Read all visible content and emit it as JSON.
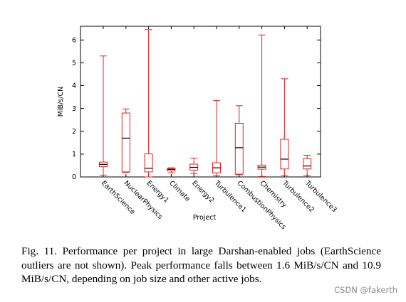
{
  "chart_data": {
    "type": "boxplot",
    "xlabel": "Project",
    "ylabel": "MiB/s/CN",
    "ylim": [
      0,
      6.6
    ],
    "yticks": [
      0,
      1,
      2,
      3,
      4,
      5,
      6
    ],
    "box_color": "#e8201e",
    "median_color": "#000000",
    "grid": false,
    "categories": [
      "EarthScience",
      "NuclearPhysics",
      "Energy1",
      "Climate",
      "Energy2",
      "Turbulence1",
      "CombustionPhysics",
      "Chemistry",
      "Turbulence2",
      "Turbulence3"
    ],
    "boxes": [
      {
        "min": 0.08,
        "q1": 0.45,
        "median": 0.55,
        "q3": 0.65,
        "max": 5.3
      },
      {
        "min": 0.2,
        "q1": 0.22,
        "median": 1.7,
        "q3": 2.8,
        "max": 2.98
      },
      {
        "min": 0.0,
        "q1": 0.22,
        "median": 0.38,
        "q3": 1.01,
        "max": 6.45
      },
      {
        "min": 0.18,
        "q1": 0.26,
        "median": 0.33,
        "q3": 0.37,
        "max": 0.4
      },
      {
        "min": 0.15,
        "q1": 0.3,
        "median": 0.42,
        "q3": 0.56,
        "max": 0.82
      },
      {
        "min": 0.05,
        "q1": 0.18,
        "median": 0.4,
        "q3": 0.62,
        "max": 3.35
      },
      {
        "min": 0.1,
        "q1": 0.12,
        "median": 1.28,
        "q3": 2.35,
        "max": 3.12
      },
      {
        "min": 0.02,
        "q1": 0.34,
        "median": 0.43,
        "q3": 0.52,
        "max": 6.22
      },
      {
        "min": 0.05,
        "q1": 0.35,
        "median": 0.78,
        "q3": 1.65,
        "max": 4.3
      },
      {
        "min": 0.05,
        "q1": 0.35,
        "median": 0.48,
        "q3": 0.8,
        "max": 0.95
      }
    ]
  },
  "caption": "Fig. 11.   Performance per project in large Darshan-enabled jobs (EarthScience outliers are not shown). Peak performance falls between 1.6 MiB/s/CN and 10.9 MiB/s/CN, depending on job size and other active jobs.",
  "watermark": "CSDN @fakerth"
}
